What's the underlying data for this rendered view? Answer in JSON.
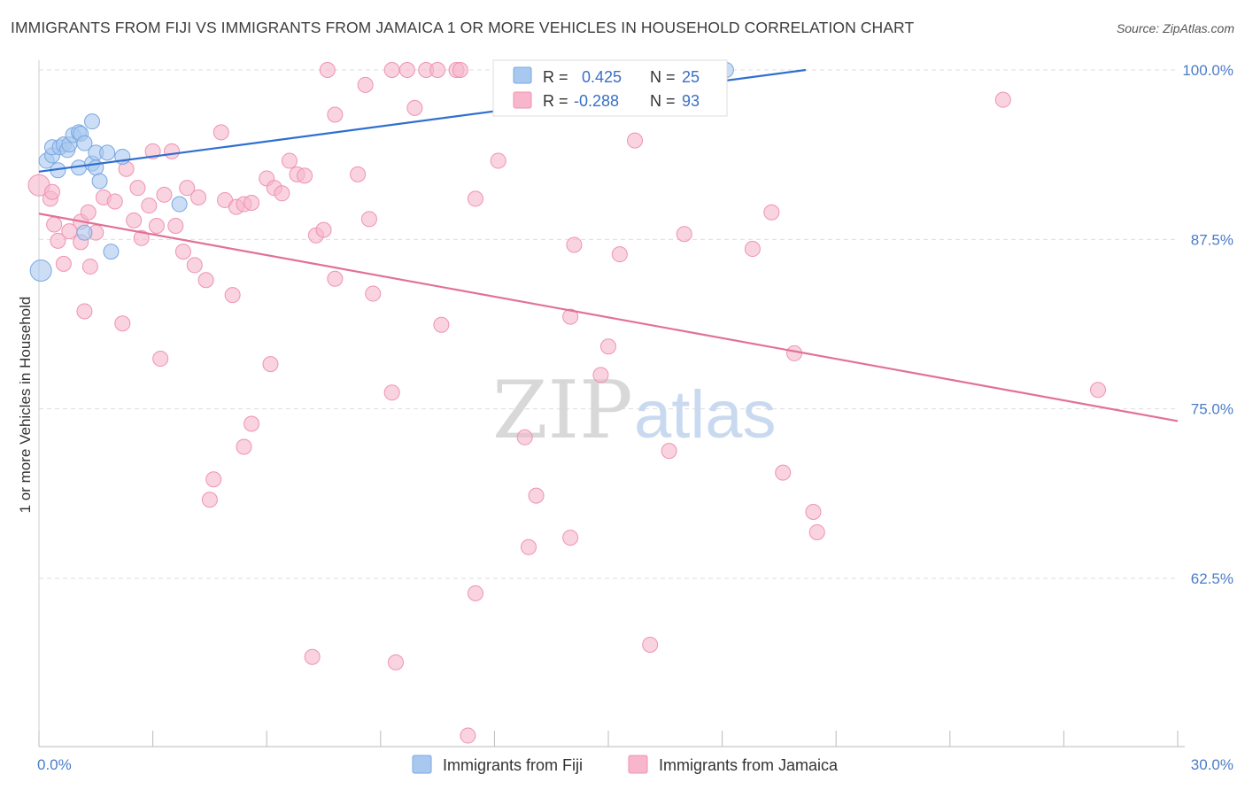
{
  "title": "IMMIGRANTS FROM FIJI VS IMMIGRANTS FROM JAMAICA 1 OR MORE VEHICLES IN HOUSEHOLD CORRELATION CHART",
  "source": "Source: ZipAtlas.com",
  "watermark": {
    "zip": "ZIP",
    "atlas": "atlas"
  },
  "colors": {
    "fiji_fill": "#a9c8f0",
    "fiji_stroke": "#7aa7e0",
    "fiji_line": "#2f6fcf",
    "jamaica_fill": "#f7b6cb",
    "jamaica_stroke": "#ee93b1",
    "jamaica_line": "#e2709a",
    "grid": "#dddddd",
    "tick_label": "#4a7cc9"
  },
  "legend": {
    "rows": [
      {
        "r_label": "R =",
        "r_value": "0.425",
        "n_label": "N =",
        "n_value": "25"
      },
      {
        "r_label": "R =",
        "r_value": "-0.288",
        "n_label": "N =",
        "n_value": "93"
      }
    ]
  },
  "chart_data": {
    "type": "scatter",
    "title": "IMMIGRANTS FROM FIJI VS IMMIGRANTS FROM JAMAICA 1 OR MORE VEHICLES IN HOUSEHOLD CORRELATION CHART",
    "xlabel": "",
    "ylabel": "1 or more Vehicles in Household",
    "xlim": [
      0,
      30
    ],
    "ylim": [
      50.6,
      102
    ],
    "x_tick_labels": [
      "0.0%",
      "30.0%"
    ],
    "y_ticks": [
      62.5,
      75.0,
      87.5,
      100.0
    ],
    "y_tick_labels": [
      "62.5%",
      "75.0%",
      "87.5%",
      "100.0%"
    ],
    "grid": true,
    "legend_position": "top-center",
    "series": [
      {
        "name": "Immigrants from Fiji",
        "color": "#a9c8f0",
        "trend": {
          "x": [
            0,
            20.2
          ],
          "y": [
            92.5,
            100.0
          ]
        },
        "points": [
          {
            "x": 0.05,
            "y": 85.2,
            "big": true
          },
          {
            "x": 0.2,
            "y": 93.3
          },
          {
            "x": 0.35,
            "y": 93.7
          },
          {
            "x": 0.35,
            "y": 94.3
          },
          {
            "x": 0.55,
            "y": 94.3
          },
          {
            "x": 0.5,
            "y": 92.6
          },
          {
            "x": 0.65,
            "y": 94.5
          },
          {
            "x": 0.75,
            "y": 94.1
          },
          {
            "x": 0.8,
            "y": 94.5
          },
          {
            "x": 0.9,
            "y": 95.2
          },
          {
            "x": 1.05,
            "y": 95.4
          },
          {
            "x": 1.1,
            "y": 95.3
          },
          {
            "x": 1.2,
            "y": 94.6
          },
          {
            "x": 1.05,
            "y": 92.8
          },
          {
            "x": 1.4,
            "y": 93.1
          },
          {
            "x": 1.5,
            "y": 92.8
          },
          {
            "x": 1.5,
            "y": 93.9
          },
          {
            "x": 1.8,
            "y": 93.9
          },
          {
            "x": 2.2,
            "y": 93.6
          },
          {
            "x": 1.4,
            "y": 96.2
          },
          {
            "x": 1.6,
            "y": 91.8
          },
          {
            "x": 1.2,
            "y": 88.0
          },
          {
            "x": 1.9,
            "y": 86.6
          },
          {
            "x": 3.7,
            "y": 90.1
          },
          {
            "x": 18.1,
            "y": 100.0
          }
        ]
      },
      {
        "name": "Immigrants from Jamaica",
        "color": "#f7b6cb",
        "trend": {
          "x": [
            0,
            30
          ],
          "y": [
            89.4,
            74.1
          ]
        },
        "points": [
          {
            "x": 0.0,
            "y": 91.5,
            "big": true
          },
          {
            "x": 0.3,
            "y": 90.5
          },
          {
            "x": 0.35,
            "y": 91.0
          },
          {
            "x": 0.4,
            "y": 88.6
          },
          {
            "x": 0.5,
            "y": 87.4
          },
          {
            "x": 0.65,
            "y": 85.7
          },
          {
            "x": 0.8,
            "y": 88.1
          },
          {
            "x": 1.1,
            "y": 87.3
          },
          {
            "x": 1.1,
            "y": 88.8
          },
          {
            "x": 1.3,
            "y": 89.5
          },
          {
            "x": 1.5,
            "y": 88.0
          },
          {
            "x": 1.35,
            "y": 85.5
          },
          {
            "x": 1.2,
            "y": 82.2
          },
          {
            "x": 1.7,
            "y": 90.6
          },
          {
            "x": 2.0,
            "y": 90.3
          },
          {
            "x": 2.3,
            "y": 92.7
          },
          {
            "x": 2.5,
            "y": 88.9
          },
          {
            "x": 2.6,
            "y": 91.3
          },
          {
            "x": 2.7,
            "y": 87.6
          },
          {
            "x": 2.9,
            "y": 90.0
          },
          {
            "x": 3.1,
            "y": 88.5
          },
          {
            "x": 3.0,
            "y": 94.0
          },
          {
            "x": 3.3,
            "y": 90.8
          },
          {
            "x": 3.5,
            "y": 94.0
          },
          {
            "x": 3.6,
            "y": 88.5
          },
          {
            "x": 3.9,
            "y": 91.3
          },
          {
            "x": 4.2,
            "y": 90.6
          },
          {
            "x": 3.8,
            "y": 86.6
          },
          {
            "x": 4.1,
            "y": 85.6
          },
          {
            "x": 4.4,
            "y": 84.5
          },
          {
            "x": 4.8,
            "y": 95.4
          },
          {
            "x": 4.9,
            "y": 90.4
          },
          {
            "x": 5.1,
            "y": 83.4
          },
          {
            "x": 5.2,
            "y": 89.9
          },
          {
            "x": 5.4,
            "y": 90.1
          },
          {
            "x": 5.6,
            "y": 90.2
          },
          {
            "x": 6.0,
            "y": 92.0
          },
          {
            "x": 6.2,
            "y": 91.3
          },
          {
            "x": 6.4,
            "y": 90.9
          },
          {
            "x": 6.6,
            "y": 93.3
          },
          {
            "x": 6.8,
            "y": 92.3
          },
          {
            "x": 7.0,
            "y": 92.2
          },
          {
            "x": 7.3,
            "y": 87.8
          },
          {
            "x": 7.5,
            "y": 88.2
          },
          {
            "x": 7.8,
            "y": 84.6
          },
          {
            "x": 7.8,
            "y": 96.7
          },
          {
            "x": 8.4,
            "y": 92.3
          },
          {
            "x": 8.6,
            "y": 98.9
          },
          {
            "x": 8.7,
            "y": 89.0
          },
          {
            "x": 8.8,
            "y": 83.5
          },
          {
            "x": 9.3,
            "y": 100.0
          },
          {
            "x": 9.7,
            "y": 100.0
          },
          {
            "x": 9.9,
            "y": 97.2
          },
          {
            "x": 10.2,
            "y": 100.0
          },
          {
            "x": 10.5,
            "y": 100.0
          },
          {
            "x": 11.0,
            "y": 100.0
          },
          {
            "x": 7.6,
            "y": 100.0
          },
          {
            "x": 10.6,
            "y": 81.2
          },
          {
            "x": 11.5,
            "y": 90.5
          },
          {
            "x": 11.5,
            "y": 61.4
          },
          {
            "x": 11.3,
            "y": 50.9
          },
          {
            "x": 11.1,
            "y": 100.0
          },
          {
            "x": 9.3,
            "y": 76.2
          },
          {
            "x": 6.1,
            "y": 78.3
          },
          {
            "x": 5.6,
            "y": 73.9
          },
          {
            "x": 5.4,
            "y": 72.2
          },
          {
            "x": 4.6,
            "y": 69.8
          },
          {
            "x": 4.5,
            "y": 68.3
          },
          {
            "x": 3.2,
            "y": 78.7
          },
          {
            "x": 2.2,
            "y": 81.3
          },
          {
            "x": 7.2,
            "y": 56.7
          },
          {
            "x": 9.4,
            "y": 56.3
          },
          {
            "x": 12.1,
            "y": 93.3
          },
          {
            "x": 12.8,
            "y": 72.9
          },
          {
            "x": 13.1,
            "y": 68.6
          },
          {
            "x": 12.9,
            "y": 64.8
          },
          {
            "x": 14.0,
            "y": 65.5
          },
          {
            "x": 14.0,
            "y": 81.8
          },
          {
            "x": 14.1,
            "y": 87.1
          },
          {
            "x": 14.8,
            "y": 77.5
          },
          {
            "x": 15.0,
            "y": 79.6
          },
          {
            "x": 15.3,
            "y": 86.4
          },
          {
            "x": 15.7,
            "y": 94.8
          },
          {
            "x": 16.1,
            "y": 57.6
          },
          {
            "x": 16.6,
            "y": 71.9
          },
          {
            "x": 17.0,
            "y": 87.9
          },
          {
            "x": 18.8,
            "y": 86.8
          },
          {
            "x": 19.3,
            "y": 89.5
          },
          {
            "x": 19.6,
            "y": 70.3
          },
          {
            "x": 19.9,
            "y": 79.1
          },
          {
            "x": 20.4,
            "y": 67.4
          },
          {
            "x": 20.5,
            "y": 65.9
          },
          {
            "x": 25.4,
            "y": 97.8
          },
          {
            "x": 27.9,
            "y": 76.4
          }
        ]
      }
    ]
  }
}
